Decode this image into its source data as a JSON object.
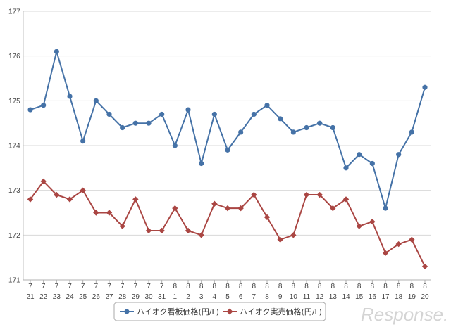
{
  "chart_data": {
    "type": "line",
    "title": "",
    "xlabel": "",
    "ylabel": "",
    "ylim": [
      171,
      177
    ],
    "yticks": [
      171,
      172,
      173,
      174,
      175,
      176,
      177
    ],
    "grid": true,
    "legend_position": "bottom-center",
    "categories": [
      {
        "month": "7",
        "day": "21"
      },
      {
        "month": "7",
        "day": "22"
      },
      {
        "month": "7",
        "day": "23"
      },
      {
        "month": "7",
        "day": "24"
      },
      {
        "month": "7",
        "day": "25"
      },
      {
        "month": "7",
        "day": "26"
      },
      {
        "month": "7",
        "day": "27"
      },
      {
        "month": "7",
        "day": "28"
      },
      {
        "month": "7",
        "day": "29"
      },
      {
        "month": "7",
        "day": "30"
      },
      {
        "month": "7",
        "day": "31"
      },
      {
        "month": "8",
        "day": "1"
      },
      {
        "month": "8",
        "day": "2"
      },
      {
        "month": "8",
        "day": "3"
      },
      {
        "month": "8",
        "day": "4"
      },
      {
        "month": "8",
        "day": "5"
      },
      {
        "month": "8",
        "day": "6"
      },
      {
        "month": "8",
        "day": "7"
      },
      {
        "month": "8",
        "day": "8"
      },
      {
        "month": "8",
        "day": "9"
      },
      {
        "month": "8",
        "day": "10"
      },
      {
        "month": "8",
        "day": "11"
      },
      {
        "month": "8",
        "day": "12"
      },
      {
        "month": "8",
        "day": "13"
      },
      {
        "month": "8",
        "day": "14"
      },
      {
        "month": "8",
        "day": "15"
      },
      {
        "month": "8",
        "day": "16"
      },
      {
        "month": "8",
        "day": "17"
      },
      {
        "month": "8",
        "day": "18"
      },
      {
        "month": "8",
        "day": "19"
      },
      {
        "month": "8",
        "day": "20"
      }
    ],
    "series": [
      {
        "name": "ハイオク看板価格(円/L)",
        "color": "#4572a7",
        "marker": "circle",
        "values": [
          174.8,
          174.9,
          176.1,
          175.1,
          174.1,
          175.0,
          174.7,
          174.4,
          174.5,
          174.5,
          174.7,
          174.0,
          174.8,
          173.6,
          174.7,
          173.9,
          174.3,
          174.7,
          174.9,
          174.6,
          174.3,
          174.4,
          174.5,
          174.4,
          173.5,
          173.8,
          173.6,
          172.6,
          173.8,
          174.3,
          175.3
        ]
      },
      {
        "name": "ハイオク実売価格(円/L)",
        "color": "#aa4643",
        "marker": "diamond",
        "values": [
          172.8,
          173.2,
          172.9,
          172.8,
          173.0,
          172.5,
          172.5,
          172.2,
          172.8,
          172.1,
          172.1,
          172.6,
          172.1,
          172.0,
          172.7,
          172.6,
          172.6,
          172.9,
          172.4,
          171.9,
          172.0,
          172.9,
          172.9,
          172.6,
          172.8,
          172.2,
          172.3,
          171.6,
          171.8,
          171.9,
          171.3
        ]
      }
    ]
  },
  "watermark": {
    "text": "Response."
  }
}
